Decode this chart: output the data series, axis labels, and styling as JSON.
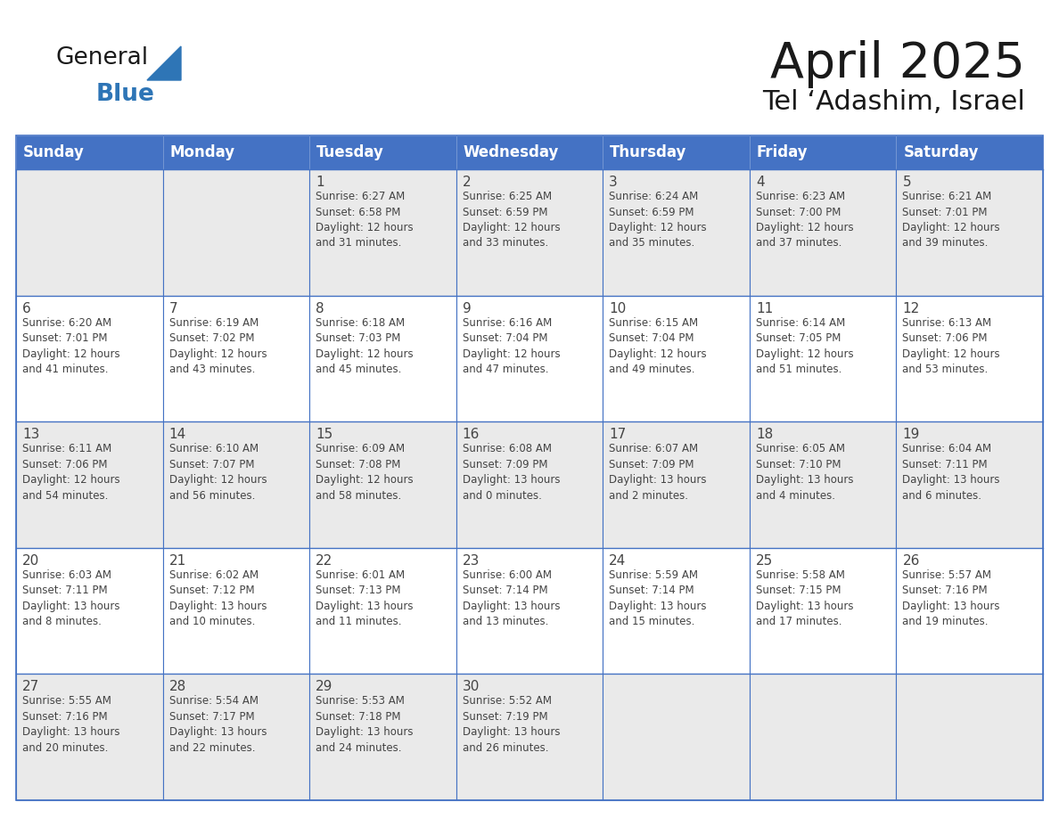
{
  "title": "April 2025",
  "subtitle": "Tel ‘Adashim, Israel",
  "days_of_week": [
    "Sunday",
    "Monday",
    "Tuesday",
    "Wednesday",
    "Thursday",
    "Friday",
    "Saturday"
  ],
  "header_bg": "#4472C4",
  "header_text": "#FFFFFF",
  "cell_bg_odd": "#EAEAEA",
  "cell_bg_even": "#FFFFFF",
  "border_color": "#4472C4",
  "text_color": "#444444",
  "title_color": "#1a1a1a",
  "logo_general_color": "#1a1a1a",
  "logo_blue_color": "#2E75B6",
  "calendar_data": [
    [
      {
        "day": null,
        "info": ""
      },
      {
        "day": null,
        "info": ""
      },
      {
        "day": 1,
        "info": "Sunrise: 6:27 AM\nSunset: 6:58 PM\nDaylight: 12 hours\nand 31 minutes."
      },
      {
        "day": 2,
        "info": "Sunrise: 6:25 AM\nSunset: 6:59 PM\nDaylight: 12 hours\nand 33 minutes."
      },
      {
        "day": 3,
        "info": "Sunrise: 6:24 AM\nSunset: 6:59 PM\nDaylight: 12 hours\nand 35 minutes."
      },
      {
        "day": 4,
        "info": "Sunrise: 6:23 AM\nSunset: 7:00 PM\nDaylight: 12 hours\nand 37 minutes."
      },
      {
        "day": 5,
        "info": "Sunrise: 6:21 AM\nSunset: 7:01 PM\nDaylight: 12 hours\nand 39 minutes."
      }
    ],
    [
      {
        "day": 6,
        "info": "Sunrise: 6:20 AM\nSunset: 7:01 PM\nDaylight: 12 hours\nand 41 minutes."
      },
      {
        "day": 7,
        "info": "Sunrise: 6:19 AM\nSunset: 7:02 PM\nDaylight: 12 hours\nand 43 minutes."
      },
      {
        "day": 8,
        "info": "Sunrise: 6:18 AM\nSunset: 7:03 PM\nDaylight: 12 hours\nand 45 minutes."
      },
      {
        "day": 9,
        "info": "Sunrise: 6:16 AM\nSunset: 7:04 PM\nDaylight: 12 hours\nand 47 minutes."
      },
      {
        "day": 10,
        "info": "Sunrise: 6:15 AM\nSunset: 7:04 PM\nDaylight: 12 hours\nand 49 minutes."
      },
      {
        "day": 11,
        "info": "Sunrise: 6:14 AM\nSunset: 7:05 PM\nDaylight: 12 hours\nand 51 minutes."
      },
      {
        "day": 12,
        "info": "Sunrise: 6:13 AM\nSunset: 7:06 PM\nDaylight: 12 hours\nand 53 minutes."
      }
    ],
    [
      {
        "day": 13,
        "info": "Sunrise: 6:11 AM\nSunset: 7:06 PM\nDaylight: 12 hours\nand 54 minutes."
      },
      {
        "day": 14,
        "info": "Sunrise: 6:10 AM\nSunset: 7:07 PM\nDaylight: 12 hours\nand 56 minutes."
      },
      {
        "day": 15,
        "info": "Sunrise: 6:09 AM\nSunset: 7:08 PM\nDaylight: 12 hours\nand 58 minutes."
      },
      {
        "day": 16,
        "info": "Sunrise: 6:08 AM\nSunset: 7:09 PM\nDaylight: 13 hours\nand 0 minutes."
      },
      {
        "day": 17,
        "info": "Sunrise: 6:07 AM\nSunset: 7:09 PM\nDaylight: 13 hours\nand 2 minutes."
      },
      {
        "day": 18,
        "info": "Sunrise: 6:05 AM\nSunset: 7:10 PM\nDaylight: 13 hours\nand 4 minutes."
      },
      {
        "day": 19,
        "info": "Sunrise: 6:04 AM\nSunset: 7:11 PM\nDaylight: 13 hours\nand 6 minutes."
      }
    ],
    [
      {
        "day": 20,
        "info": "Sunrise: 6:03 AM\nSunset: 7:11 PM\nDaylight: 13 hours\nand 8 minutes."
      },
      {
        "day": 21,
        "info": "Sunrise: 6:02 AM\nSunset: 7:12 PM\nDaylight: 13 hours\nand 10 minutes."
      },
      {
        "day": 22,
        "info": "Sunrise: 6:01 AM\nSunset: 7:13 PM\nDaylight: 13 hours\nand 11 minutes."
      },
      {
        "day": 23,
        "info": "Sunrise: 6:00 AM\nSunset: 7:14 PM\nDaylight: 13 hours\nand 13 minutes."
      },
      {
        "day": 24,
        "info": "Sunrise: 5:59 AM\nSunset: 7:14 PM\nDaylight: 13 hours\nand 15 minutes."
      },
      {
        "day": 25,
        "info": "Sunrise: 5:58 AM\nSunset: 7:15 PM\nDaylight: 13 hours\nand 17 minutes."
      },
      {
        "day": 26,
        "info": "Sunrise: 5:57 AM\nSunset: 7:16 PM\nDaylight: 13 hours\nand 19 minutes."
      }
    ],
    [
      {
        "day": 27,
        "info": "Sunrise: 5:55 AM\nSunset: 7:16 PM\nDaylight: 13 hours\nand 20 minutes."
      },
      {
        "day": 28,
        "info": "Sunrise: 5:54 AM\nSunset: 7:17 PM\nDaylight: 13 hours\nand 22 minutes."
      },
      {
        "day": 29,
        "info": "Sunrise: 5:53 AM\nSunset: 7:18 PM\nDaylight: 13 hours\nand 24 minutes."
      },
      {
        "day": 30,
        "info": "Sunrise: 5:52 AM\nSunset: 7:19 PM\nDaylight: 13 hours\nand 26 minutes."
      },
      {
        "day": null,
        "info": ""
      },
      {
        "day": null,
        "info": ""
      },
      {
        "day": null,
        "info": ""
      }
    ]
  ]
}
